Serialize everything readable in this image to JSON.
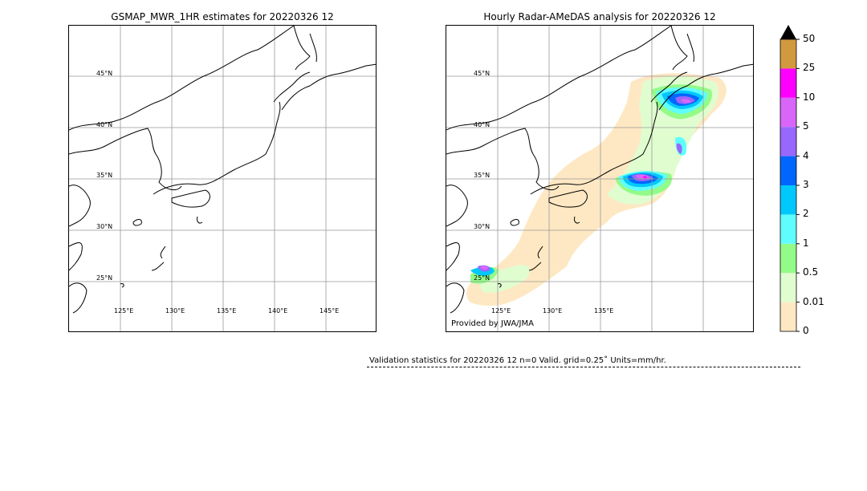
{
  "left_panel": {
    "title": "GSMAP_MWR_1HR estimates for 20220326 12",
    "lat_labels": [
      "45°N",
      "40°N",
      "35°N",
      "30°N",
      "25°N"
    ],
    "lon_labels": [
      "125°E",
      "130°E",
      "135°E",
      "140°E",
      "145°E"
    ]
  },
  "right_panel": {
    "title": "Hourly Radar-AMeDAS analysis for 20220326 12",
    "lat_labels": [
      "45°N",
      "40°N",
      "35°N",
      "30°N",
      "25°N"
    ],
    "lon_labels": [
      "125°E",
      "130°E",
      "135°E"
    ],
    "credit": "Provided by JWA/JMA"
  },
  "colorbar": {
    "ticks": [
      "0",
      "0.01",
      "0.5",
      "1",
      "2",
      "3",
      "4",
      "5",
      "10",
      "25",
      "50"
    ],
    "colors": [
      "#fee8c3",
      "#e0fdd0",
      "#93fb88",
      "#5ffdfd",
      "#00c8fc",
      "#0066fe",
      "#9768fb",
      "#d966f8",
      "#fd00fd",
      "#d19a3e"
    ],
    "extend_color": "#000000"
  },
  "validation": {
    "text": "Validation statistics for 20220326 12  n=0 Valid. grid=0.25˚ Units=mm/hr."
  }
}
